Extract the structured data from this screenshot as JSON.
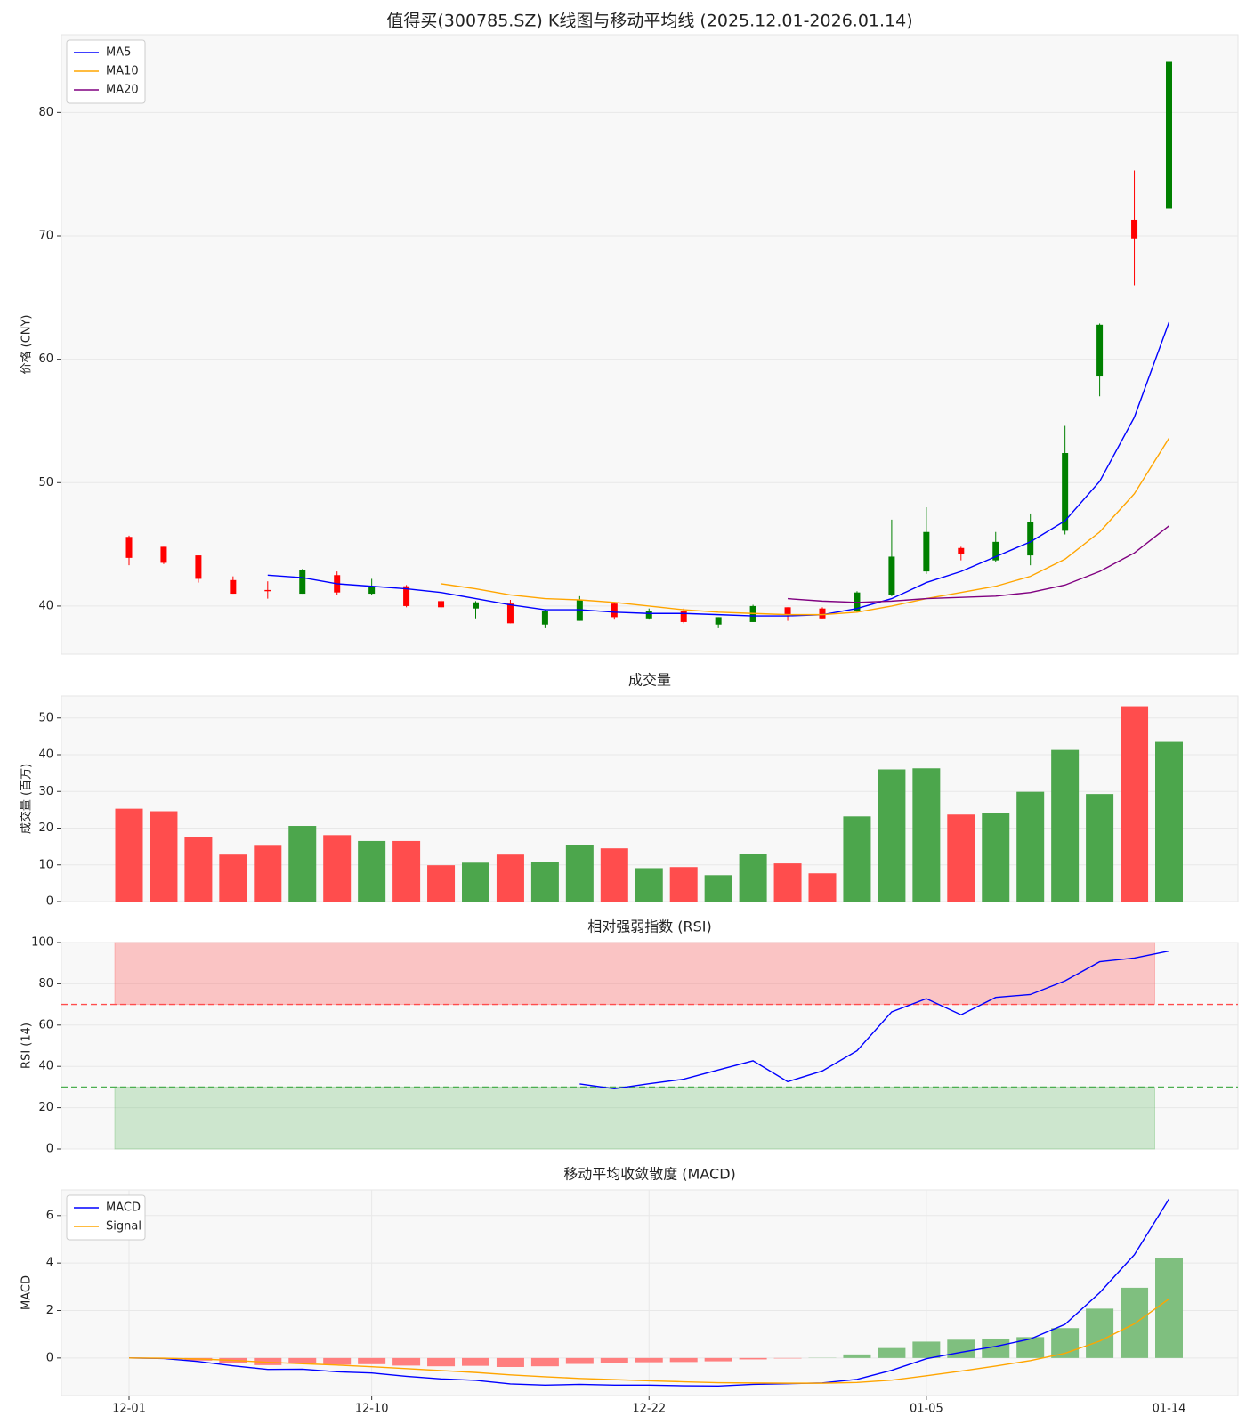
{
  "chart_data": [
    {
      "type": "candlestick",
      "title": "值得买(300785.SZ) K线图与移动平均线 (2025.12.01-2026.01.14)",
      "ylabel": "价格 (CNY)",
      "open": [
        45.6,
        44.8,
        44.1,
        42.1,
        41.3,
        41.0,
        42.5,
        41.0,
        41.6,
        40.4,
        39.8,
        40.2,
        38.5,
        38.8,
        40.2,
        39.0,
        39.6,
        38.5,
        38.7,
        39.9,
        39.8,
        39.6,
        40.9,
        42.8,
        44.7,
        43.7,
        44.1,
        46.1,
        58.6,
        71.3,
        72.2
      ],
      "high": [
        45.7,
        44.8,
        44.1,
        42.4,
        42.0,
        43.0,
        42.8,
        42.2,
        41.7,
        40.5,
        40.4,
        40.5,
        39.7,
        40.8,
        40.3,
        39.8,
        39.8,
        39.1,
        40.1,
        39.9,
        39.9,
        41.2,
        47.0,
        48.0,
        44.8,
        46.0,
        47.5,
        54.6,
        62.9,
        75.3,
        84.2
      ],
      "low": [
        43.3,
        43.4,
        41.9,
        41.0,
        40.6,
        41.0,
        40.9,
        40.9,
        39.9,
        39.8,
        39.0,
        38.6,
        38.2,
        38.8,
        38.9,
        38.9,
        38.6,
        38.2,
        38.7,
        38.8,
        39.0,
        39.5,
        40.8,
        42.6,
        43.7,
        43.6,
        43.3,
        45.8,
        57.0,
        66.0,
        72.1
      ],
      "close": [
        43.9,
        43.5,
        42.2,
        41.0,
        41.2,
        42.9,
        41.1,
        41.6,
        40.0,
        39.9,
        40.3,
        38.6,
        39.6,
        40.5,
        39.1,
        39.6,
        38.7,
        39.1,
        40.0,
        39.3,
        39.0,
        41.1,
        44.0,
        46.0,
        44.2,
        45.2,
        46.8,
        52.4,
        62.8,
        69.8,
        84.1
      ],
      "up_color": "#008000",
      "down_color": "#ff0000",
      "series": [
        {
          "name": "MA5",
          "color": "#0000ff",
          "values": [
            null,
            null,
            null,
            null,
            42.5,
            42.3,
            41.8,
            41.6,
            41.4,
            41.1,
            40.6,
            40.1,
            39.7,
            39.7,
            39.5,
            39.4,
            39.4,
            39.3,
            39.2,
            39.2,
            39.3,
            39.8,
            40.6,
            41.9,
            42.8,
            44.0,
            45.2,
            46.9,
            50.1,
            55.3,
            63.0
          ]
        },
        {
          "name": "MA10",
          "color": "#ffa500",
          "values": [
            null,
            null,
            null,
            null,
            null,
            null,
            null,
            null,
            null,
            41.8,
            41.4,
            40.9,
            40.6,
            40.5,
            40.3,
            40.0,
            39.7,
            39.5,
            39.4,
            39.3,
            39.3,
            39.5,
            40.0,
            40.6,
            41.1,
            41.6,
            42.4,
            43.8,
            46.0,
            49.1,
            53.6
          ]
        },
        {
          "name": "MA20",
          "color": "#800080",
          "values": [
            null,
            null,
            null,
            null,
            null,
            null,
            null,
            null,
            null,
            null,
            null,
            null,
            null,
            null,
            null,
            null,
            null,
            null,
            null,
            40.6,
            40.4,
            40.3,
            40.4,
            40.6,
            40.7,
            40.8,
            41.1,
            41.7,
            42.8,
            44.3,
            46.5
          ]
        }
      ],
      "legend": "upper left",
      "ylim": [
        36.1,
        86.3
      ],
      "yticks": [
        40,
        50,
        60,
        70,
        80
      ],
      "grid": true
    },
    {
      "type": "bar",
      "title": "成交量",
      "ylabel": "成交量 (百万)",
      "values": [
        25.3,
        24.6,
        17.6,
        12.8,
        15.2,
        20.6,
        18.1,
        16.5,
        16.5,
        9.9,
        10.6,
        12.8,
        10.8,
        15.5,
        14.5,
        9.1,
        9.4,
        7.2,
        13.0,
        10.4,
        7.7,
        23.2,
        36.0,
        36.3,
        23.7,
        24.2,
        29.9,
        41.3,
        29.3,
        53.2,
        43.5
      ],
      "up_color": "#4ca64c",
      "down_color": "#ff4d4d",
      "ylim": [
        0,
        56
      ],
      "yticks": [
        0,
        10,
        20,
        30,
        40,
        50
      ],
      "grid": true
    },
    {
      "type": "line",
      "title": "相对强弱指数 (RSI)",
      "ylabel": "RSI (14)",
      "values": [
        null,
        null,
        null,
        null,
        null,
        null,
        null,
        null,
        null,
        null,
        null,
        null,
        null,
        31.5,
        29.2,
        31.6,
        33.8,
        38.3,
        42.7,
        32.6,
        37.8,
        47.6,
        66.4,
        72.8,
        65.0,
        73.4,
        74.8,
        81.4,
        90.7,
        92.5,
        95.9
      ],
      "color": "#0000ff",
      "overbought": 70,
      "oversold": 30,
      "overbought_color": "#ff4d4d",
      "oversold_color": "#4caf50",
      "ylim": [
        0,
        100
      ],
      "yticks": [
        0,
        20,
        40,
        60,
        80,
        100
      ],
      "grid": true
    },
    {
      "type": "macd",
      "title": "移动平均收敛散度 (MACD)",
      "ylabel": "MACD",
      "categories": [
        "12-01",
        null,
        null,
        null,
        null,
        null,
        null,
        "12-10",
        null,
        null,
        null,
        null,
        null,
        null,
        null,
        "12-22",
        null,
        null,
        null,
        null,
        null,
        null,
        null,
        "01-05",
        null,
        null,
        null,
        null,
        null,
        null,
        "01-14"
      ],
      "series": [
        {
          "name": "MACD",
          "color": "#0000ff",
          "values": [
            0,
            -0.02,
            -0.15,
            -0.33,
            -0.48,
            -0.47,
            -0.58,
            -0.63,
            -0.77,
            -0.88,
            -0.94,
            -1.09,
            -1.14,
            -1.11,
            -1.14,
            -1.14,
            -1.17,
            -1.18,
            -1.11,
            -1.08,
            -1.05,
            -0.9,
            -0.52,
            -0.03,
            0.24,
            0.49,
            0.8,
            1.42,
            2.75,
            4.35,
            6.7
          ]
        },
        {
          "name": "Signal",
          "color": "#ffa500",
          "values": [
            0,
            -0.01,
            -0.04,
            -0.1,
            -0.18,
            -0.24,
            -0.3,
            -0.37,
            -0.45,
            -0.53,
            -0.61,
            -0.71,
            -0.79,
            -0.86,
            -0.91,
            -0.96,
            -1.0,
            -1.04,
            -1.05,
            -1.06,
            -1.06,
            -1.03,
            -0.93,
            -0.75,
            -0.55,
            -0.34,
            -0.11,
            0.2,
            0.71,
            1.44,
            2.49
          ]
        }
      ],
      "histogram": [
        0,
        -0.01,
        -0.11,
        -0.23,
        -0.3,
        -0.23,
        -0.28,
        -0.26,
        -0.32,
        -0.35,
        -0.33,
        -0.38,
        -0.35,
        -0.25,
        -0.23,
        -0.18,
        -0.17,
        -0.14,
        -0.06,
        -0.02,
        0.01,
        0.15,
        0.42,
        0.69,
        0.77,
        0.82,
        0.88,
        1.26,
        2.08,
        2.96,
        4.2
      ],
      "positive_color": "#7fbf7f",
      "negative_color": "#ff7f7f",
      "legend": "upper left",
      "ylim": [
        -1.58,
        7.08
      ],
      "yticks": [
        0,
        2,
        4,
        6
      ],
      "grid": true
    }
  ]
}
